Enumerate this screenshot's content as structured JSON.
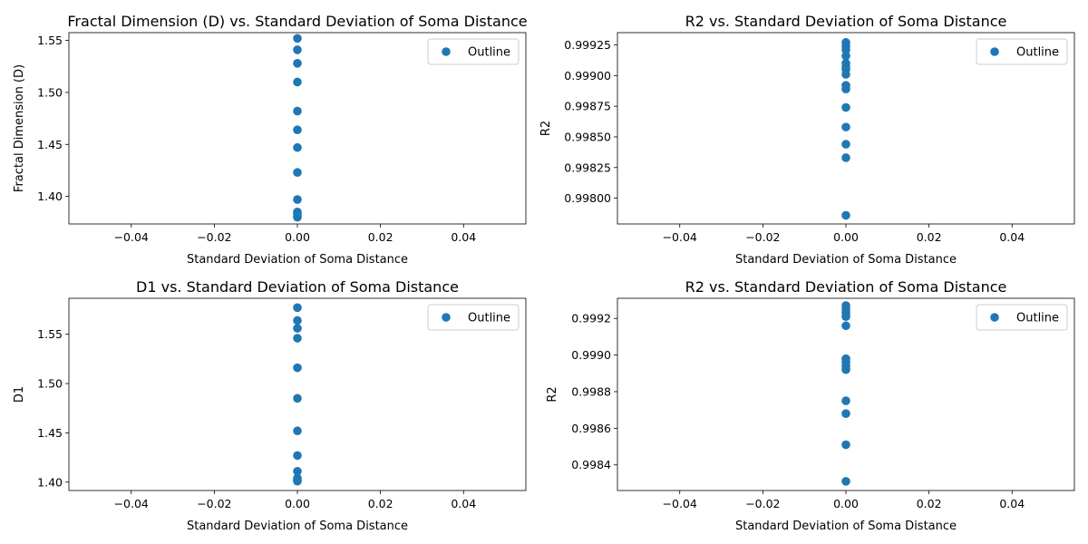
{
  "chart_data": [
    {
      "type": "scatter",
      "title": "Fractal Dimension (D) vs. Standard Deviation of Soma Distance",
      "xlabel": "Standard Deviation of Soma Distance",
      "ylabel": "Fractal Dimension (D)",
      "xlim": [
        -0.055,
        0.055
      ],
      "ylim": [
        1.3735,
        1.5575
      ],
      "xticks": [
        -0.04,
        -0.02,
        0.0,
        0.02,
        0.04
      ],
      "xtick_labels": [
        "−0.04",
        "−0.02",
        "0.00",
        "0.02",
        "0.04"
      ],
      "yticks": [
        1.4,
        1.45,
        1.5,
        1.55
      ],
      "ytick_labels": [
        "1.40",
        "1.45",
        "1.50",
        "1.55"
      ],
      "grid": false,
      "legend": "top-right",
      "series": [
        {
          "name": "Outline",
          "color": "#1f77b4",
          "points": [
            [
              0,
              1.552
            ],
            [
              0,
              1.541
            ],
            [
              0,
              1.528
            ],
            [
              0,
              1.51
            ],
            [
              0,
              1.482
            ],
            [
              0,
              1.464
            ],
            [
              0,
              1.447
            ],
            [
              0,
              1.423
            ],
            [
              0,
              1.397
            ],
            [
              0,
              1.385
            ],
            [
              0,
              1.383
            ],
            [
              0,
              1.381
            ],
            [
              0,
              1.38
            ]
          ]
        }
      ]
    },
    {
      "type": "scatter",
      "title": "R2 vs. Standard Deviation of Soma Distance",
      "xlabel": "Standard Deviation of Soma Distance",
      "ylabel": "R2",
      "xlim": [
        -0.055,
        0.055
      ],
      "ylim": [
        0.99779,
        0.99935
      ],
      "xticks": [
        -0.04,
        -0.02,
        0.0,
        0.02,
        0.04
      ],
      "xtick_labels": [
        "−0.04",
        "−0.02",
        "0.00",
        "0.02",
        "0.04"
      ],
      "yticks": [
        0.998,
        0.99825,
        0.9985,
        0.99875,
        0.999,
        0.99925
      ],
      "ytick_labels": [
        "0.99800",
        "0.99825",
        "0.99850",
        "0.99875",
        "0.99900",
        "0.99925"
      ],
      "grid": false,
      "legend": "top-right",
      "series": [
        {
          "name": "Outline",
          "color": "#1f77b4",
          "points": [
            [
              0,
              0.99927
            ],
            [
              0,
              0.99924
            ],
            [
              0,
              0.99921
            ],
            [
              0,
              0.99916
            ],
            [
              0,
              0.9991
            ],
            [
              0,
              0.99907
            ],
            [
              0,
              0.99905
            ],
            [
              0,
              0.99901
            ],
            [
              0,
              0.99892
            ],
            [
              0,
              0.99889
            ],
            [
              0,
              0.99874
            ],
            [
              0,
              0.99858
            ],
            [
              0,
              0.99844
            ],
            [
              0,
              0.99833
            ],
            [
              0,
              0.99786
            ]
          ]
        }
      ]
    },
    {
      "type": "scatter",
      "title": "D1 vs. Standard Deviation of Soma Distance",
      "xlabel": "Standard Deviation of Soma Distance",
      "ylabel": "D1",
      "xlim": [
        -0.055,
        0.055
      ],
      "ylim": [
        1.3915,
        1.5865
      ],
      "xticks": [
        -0.04,
        -0.02,
        0.0,
        0.02,
        0.04
      ],
      "xtick_labels": [
        "−0.04",
        "−0.02",
        "0.00",
        "0.02",
        "0.04"
      ],
      "yticks": [
        1.4,
        1.45,
        1.5,
        1.55
      ],
      "ytick_labels": [
        "1.40",
        "1.45",
        "1.50",
        "1.55"
      ],
      "grid": false,
      "legend": "top-right",
      "series": [
        {
          "name": "Outline",
          "color": "#1f77b4",
          "points": [
            [
              0,
              1.577
            ],
            [
              0,
              1.564
            ],
            [
              0,
              1.556
            ],
            [
              0,
              1.546
            ],
            [
              0,
              1.516
            ],
            [
              0,
              1.485
            ],
            [
              0,
              1.452
            ],
            [
              0,
              1.427
            ],
            [
              0,
              1.411
            ],
            [
              0,
              1.404
            ],
            [
              0,
              1.402
            ],
            [
              0,
              1.401
            ]
          ]
        }
      ]
    },
    {
      "type": "scatter",
      "title": "R2 vs. Standard Deviation of Soma Distance",
      "xlabel": "Standard Deviation of Soma Distance",
      "ylabel": "R2",
      "xlim": [
        -0.055,
        0.055
      ],
      "ylim": [
        0.99826,
        0.99931
      ],
      "xticks": [
        -0.04,
        -0.02,
        0.0,
        0.02,
        0.04
      ],
      "xtick_labels": [
        "−0.04",
        "−0.02",
        "0.00",
        "0.02",
        "0.04"
      ],
      "yticks": [
        0.9984,
        0.9986,
        0.9988,
        0.999,
        0.9992
      ],
      "ytick_labels": [
        "0.9984",
        "0.9986",
        "0.9988",
        "0.9990",
        "0.9992"
      ],
      "grid": false,
      "legend": "top-right",
      "series": [
        {
          "name": "Outline",
          "color": "#1f77b4",
          "points": [
            [
              0,
              0.99927
            ],
            [
              0,
              0.99925
            ],
            [
              0,
              0.99923
            ],
            [
              0,
              0.99921
            ],
            [
              0,
              0.99916
            ],
            [
              0,
              0.99898
            ],
            [
              0,
              0.99896
            ],
            [
              0,
              0.99894
            ],
            [
              0,
              0.99892
            ],
            [
              0,
              0.99875
            ],
            [
              0,
              0.99868
            ],
            [
              0,
              0.99851
            ],
            [
              0,
              0.99831
            ]
          ]
        }
      ]
    }
  ]
}
